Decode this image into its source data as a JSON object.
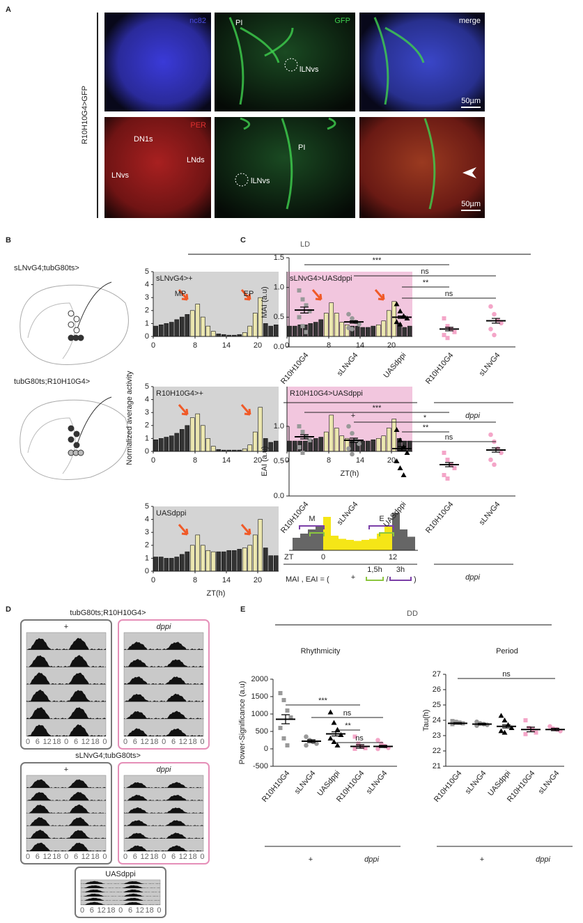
{
  "panel_a": {
    "label": "A",
    "row_label": "R10H10G4>GFP",
    "row1": [
      "nc82",
      "GFP",
      "merge"
    ],
    "row2": [
      "PER"
    ],
    "annotations": [
      "PI",
      "lLNvs",
      "DN1s",
      "LNds",
      "LNvs",
      "PI",
      "lLNvs"
    ],
    "scale": "50µm"
  },
  "panel_b": {
    "label": "B",
    "condition": "LD",
    "genotypes": [
      "sLNvG4;tubG80ts>",
      "tubG80ts;R10H10G4>"
    ],
    "ylabel": "Normalized average activity",
    "schematic": [
      "M",
      "E",
      "ZT",
      "0",
      "12",
      "MAI , EAI = (",
      "1,5h",
      "/",
      "3h",
      ")"
    ]
  },
  "panel_c": {
    "label": "C"
  },
  "panel_d": {
    "label": "D",
    "titles": [
      "tubG80ts;R10H10G4>",
      "sLNvG4;tubG80ts>"
    ],
    "boxes": [
      "+",
      "dppi",
      "UASdppi"
    ],
    "ticks": [
      "0",
      "6",
      "12",
      "18",
      "0",
      "6",
      "12",
      "18",
      "0"
    ]
  },
  "panel_e": {
    "label": "E",
    "condition": "DD",
    "titles": [
      "Rhythmicity",
      "Period"
    ]
  },
  "chart_data": [
    {
      "type": "bar",
      "title": "sLNvG4>+",
      "background": "#d4d4d4",
      "color": "#333333",
      "light_color": "#ece7b0",
      "annotations": [
        "MP",
        "EP"
      ],
      "x": [
        0.5,
        1.5,
        2.5,
        3.5,
        4.5,
        5.5,
        6.5,
        7.5,
        8.5,
        9.5,
        10.5,
        11.5,
        12.5,
        13.5,
        14.5,
        15.5,
        16.5,
        17.5,
        18.5,
        19.5,
        20.5,
        21.5,
        22.5,
        23.5
      ],
      "values": [
        0.8,
        0.9,
        1.0,
        1.1,
        1.3,
        1.5,
        1.7,
        2.0,
        2.5,
        1.5,
        0.8,
        0.4,
        0.2,
        0.15,
        0.1,
        0.1,
        0.15,
        0.3,
        0.8,
        1.8,
        3.0,
        1.0,
        0.8,
        0.9
      ],
      "xlim": [
        0,
        24
      ],
      "ylim": [
        0,
        5
      ],
      "xticks": [
        0,
        8,
        14,
        20
      ],
      "yticks": [
        0,
        1,
        2,
        3,
        4,
        5
      ]
    },
    {
      "type": "bar",
      "title": "sLNvG4>UASdppi",
      "background": "#f2c6de",
      "color": "#333333",
      "light_color": "#ece7b0",
      "x": [
        0.5,
        1.5,
        2.5,
        3.5,
        4.5,
        5.5,
        6.5,
        7.5,
        8.5,
        9.5,
        10.5,
        11.5,
        12.5,
        13.5,
        14.5,
        15.5,
        16.5,
        17.5,
        18.5,
        19.5,
        20.5,
        21.5,
        22.5,
        23.5
      ],
      "values": [
        0.8,
        0.8,
        0.9,
        0.9,
        1.0,
        1.1,
        1.3,
        1.8,
        2.6,
        1.8,
        1.1,
        0.9,
        0.8,
        0.8,
        0.7,
        0.7,
        0.8,
        0.9,
        1.2,
        2.0,
        2.7,
        1.0,
        0.7,
        0.8
      ],
      "xlim": [
        0,
        24
      ],
      "ylim": [
        0,
        5
      ],
      "xticks": [
        0,
        8,
        14,
        20
      ]
    },
    {
      "type": "bar",
      "title": "R10H10G4>+",
      "background": "#d4d4d4",
      "color": "#333333",
      "light_color": "#ece7b0",
      "x": [
        0.5,
        1.5,
        2.5,
        3.5,
        4.5,
        5.5,
        6.5,
        7.5,
        8.5,
        9.5,
        10.5,
        11.5,
        12.5,
        13.5,
        14.5,
        15.5,
        16.5,
        17.5,
        18.5,
        19.5,
        20.5,
        21.5,
        22.5,
        23.5
      ],
      "values": [
        0.9,
        1.0,
        1.1,
        1.2,
        1.4,
        1.7,
        2.0,
        2.6,
        2.9,
        2.0,
        1.0,
        0.4,
        0.15,
        0.1,
        0.1,
        0.1,
        0.1,
        0.2,
        0.5,
        1.5,
        3.4,
        1.0,
        0.7,
        0.8
      ],
      "xlim": [
        0,
        24
      ],
      "ylim": [
        0,
        5
      ],
      "xticks": [
        0,
        8,
        14,
        20
      ],
      "yticks": [
        0,
        1,
        2,
        3,
        4,
        5
      ]
    },
    {
      "type": "bar",
      "title": "R10H10G4>UASdppi",
      "background": "#f2c6de",
      "color": "#333333",
      "light_color": "#ece7b0",
      "xlabel": "ZT(h)",
      "x": [
        0.5,
        1.5,
        2.5,
        3.5,
        4.5,
        5.5,
        6.5,
        7.5,
        8.5,
        9.5,
        10.5,
        11.5,
        12.5,
        13.5,
        14.5,
        15.5,
        16.5,
        17.5,
        18.5,
        19.5,
        20.5,
        21.5,
        22.5,
        23.5
      ],
      "values": [
        0.8,
        0.8,
        0.8,
        0.8,
        0.9,
        1.0,
        1.1,
        1.5,
        2.8,
        1.8,
        1.2,
        1.0,
        0.9,
        0.8,
        0.8,
        0.8,
        0.9,
        1.0,
        1.2,
        1.8,
        2.5,
        1.0,
        0.8,
        0.8
      ],
      "xlim": [
        0,
        24
      ],
      "ylim": [
        0,
        5
      ],
      "xticks": [
        0,
        8,
        14,
        20
      ]
    },
    {
      "type": "bar",
      "title": "UASdppi",
      "background": "#d4d4d4",
      "color": "#333333",
      "light_color": "#ece7b0",
      "xlabel": "ZT(h)",
      "x": [
        0.5,
        1.5,
        2.5,
        3.5,
        4.5,
        5.5,
        6.5,
        7.5,
        8.5,
        9.5,
        10.5,
        11.5,
        12.5,
        13.5,
        14.5,
        15.5,
        16.5,
        17.5,
        18.5,
        19.5,
        20.5,
        21.5,
        22.5,
        23.5
      ],
      "values": [
        1.1,
        1.1,
        1.0,
        1.0,
        1.1,
        1.3,
        1.5,
        2.0,
        2.8,
        2.0,
        1.6,
        1.5,
        1.5,
        1.5,
        1.6,
        1.6,
        1.7,
        1.8,
        2.0,
        2.8,
        4.0,
        1.8,
        1.2,
        1.2
      ],
      "xlim": [
        0,
        24
      ],
      "ylim": [
        0,
        5
      ],
      "xticks": [
        0,
        8,
        14,
        20
      ],
      "yticks": [
        0,
        1,
        2,
        3,
        4,
        5
      ]
    },
    {
      "type": "scatter",
      "ylabel": "MAI (a.u)",
      "categories": [
        "R10H10G4",
        "sLNvG4",
        "UASdppi",
        "R10H10G4",
        "sLNvG4"
      ],
      "groups": [
        "+",
        "dppi"
      ],
      "significance": [
        "***",
        "ns",
        "**",
        "ns"
      ],
      "colors": [
        "#999999",
        "#999999",
        "#000000",
        "#f4a6c8",
        "#f4a6c8"
      ],
      "markers": [
        "square",
        "circle",
        "triangle",
        "square",
        "circle"
      ],
      "points": [
        [
          0.95,
          0.8,
          0.7,
          0.6,
          0.5,
          0.35,
          0.25
        ],
        [
          0.55,
          0.48,
          0.42,
          0.38,
          0.32,
          0.3
        ],
        [
          0.72,
          0.6,
          0.52,
          0.48,
          0.42,
          0.38
        ],
        [
          0.48,
          0.35,
          0.3,
          0.25,
          0.2,
          0.15
        ],
        [
          0.68,
          0.55,
          0.45,
          0.4,
          0.3,
          0.2
        ]
      ],
      "means": [
        0.62,
        0.42,
        0.5,
        0.3,
        0.44
      ],
      "errors": [
        0.05,
        0.02,
        0.02,
        0.03,
        0.04
      ],
      "ylim": [
        0,
        1.5
      ],
      "yticks": [
        {
          "value": 0,
          "label": "0.0"
        },
        {
          "value": 0.5,
          "label": "0.5"
        },
        {
          "value": 1,
          "label": "1.0"
        },
        {
          "value": 1.5,
          "label": "1.5"
        }
      ]
    },
    {
      "type": "scatter",
      "ylabel": "EAI (a.u)",
      "categories": [
        "R10H10G4",
        "sLNvG4",
        "UASdppi",
        "R10H10G4",
        "sLNvG4"
      ],
      "groups": [
        "+",
        "dppi"
      ],
      "significance": [
        "***",
        "*",
        "**",
        "ns"
      ],
      "colors": [
        "#999999",
        "#999999",
        "#000000",
        "#f4a6c8",
        "#f4a6c8"
      ],
      "markers": [
        "square",
        "circle",
        "triangle",
        "square",
        "circle"
      ],
      "points": [
        [
          1.0,
          0.92,
          0.85,
          0.8,
          0.7,
          0.62
        ],
        [
          1.0,
          0.9,
          0.8,
          0.75,
          0.68,
          0.6
        ],
        [
          0.95,
          0.8,
          0.7,
          0.62,
          0.5,
          0.4,
          0.3
        ],
        [
          0.62,
          0.52,
          0.45,
          0.4,
          0.3,
          0.25
        ],
        [
          0.88,
          0.78,
          0.68,
          0.62,
          0.52,
          0.45
        ]
      ],
      "means": [
        0.85,
        0.8,
        0.68,
        0.45,
        0.66
      ],
      "errors": [
        0.03,
        0.03,
        0.03,
        0.03,
        0.03
      ],
      "ylim": [
        0,
        1
      ],
      "yticks": [
        {
          "value": 0,
          "label": "0.0"
        },
        {
          "value": 0.5,
          "label": "0.5"
        },
        {
          "value": 1,
          "label": "1.0"
        }
      ]
    },
    {
      "type": "scatter",
      "ylabel": "Power-Significance (a.u)",
      "categories": [
        "R10H10G4",
        "sLNvG4",
        "UASdppi",
        "R10H10G4",
        "sLNvG4"
      ],
      "groups": [
        "+",
        "dppi"
      ],
      "significance": [
        "***",
        "ns",
        "**",
        "ns"
      ],
      "colors": [
        "#999999",
        "#999999",
        "#000000",
        "#f4a6c8",
        "#f4a6c8"
      ],
      "markers": [
        "square",
        "circle",
        "triangle",
        "square",
        "circle"
      ],
      "points": [
        [
          1600,
          1400,
          1100,
          900,
          600,
          300,
          100
        ],
        [
          350,
          250,
          200,
          150,
          100
        ],
        [
          1050,
          750,
          550,
          400,
          300,
          200,
          100
        ],
        [
          350,
          150,
          60,
          20,
          0
        ],
        [
          250,
          150,
          80,
          30,
          0
        ]
      ],
      "means": [
        850,
        220,
        430,
        70,
        70
      ],
      "errors": [
        130,
        40,
        60,
        50,
        30
      ],
      "ylim": [
        -500,
        2000
      ],
      "yticks": [
        -500,
        0,
        500,
        1000,
        1500,
        2000
      ]
    },
    {
      "type": "scatter",
      "ylabel": "Tau(h)",
      "categories": [
        "R10H10G4",
        "sLNvG4",
        "UASdppi",
        "R10H10G4",
        "sLNvG4"
      ],
      "groups": [
        "+",
        "dppi"
      ],
      "significance": [
        "ns"
      ],
      "colors": [
        "#999999",
        "#999999",
        "#000000",
        "#f4a6c8",
        "#f4a6c8"
      ],
      "markers": [
        "square",
        "circle",
        "triangle",
        "square",
        "circle"
      ],
      "points": [
        [
          23.95,
          23.9,
          23.85,
          23.8,
          23.75
        ],
        [
          23.9,
          23.8,
          23.75,
          23.7,
          23.65
        ],
        [
          24.3,
          24.0,
          23.7,
          23.5,
          23.3,
          23.2
        ],
        [
          24.0,
          23.5,
          23.4,
          23.2,
          23.1
        ],
        [
          23.6,
          23.45,
          23.4,
          23.3
        ]
      ],
      "means": [
        23.8,
        23.75,
        23.6,
        23.4,
        23.4
      ],
      "errors": [
        0.05,
        0.05,
        0.1,
        0.15,
        0.08
      ],
      "ylim": [
        21,
        27
      ],
      "yticks": [
        21,
        22,
        23,
        24,
        25,
        26,
        27
      ]
    }
  ]
}
